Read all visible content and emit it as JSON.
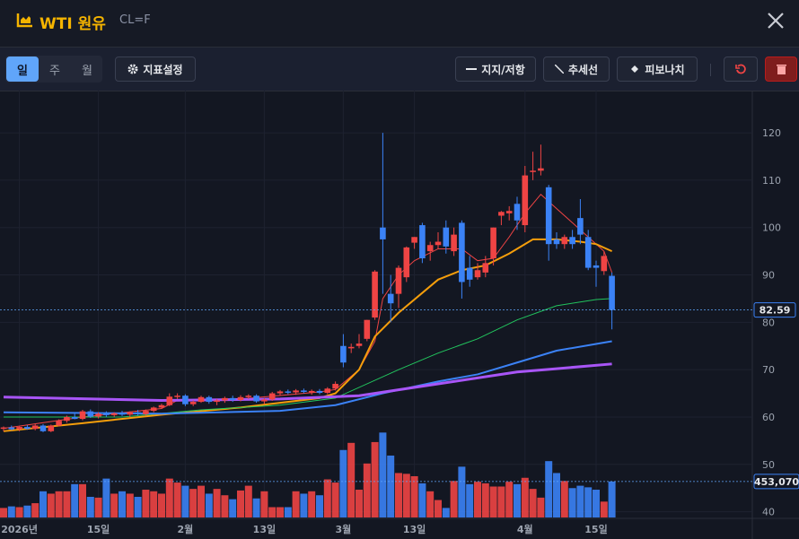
{
  "header": {
    "title": "WTI 원유",
    "symbol": "CL=F"
  },
  "toolbar": {
    "periods": [
      "일",
      "주",
      "월"
    ],
    "indicator": "지표설정",
    "tools": [
      "지지/저항",
      "추세선",
      "피보나치"
    ]
  },
  "chart_data": {
    "type": "candlestick",
    "up_color": "#ef4444",
    "down_color": "#3b82f6",
    "ylim": [
      38.6,
      129.1
    ],
    "yticks": [
      40,
      50,
      60,
      70,
      80,
      90,
      100,
      110,
      120
    ],
    "grid": true,
    "xticks": [
      {
        "value": 2,
        "label": "2026년"
      },
      {
        "value": 12,
        "label": "15일"
      },
      {
        "value": 23,
        "label": "2월"
      },
      {
        "value": 33,
        "label": "13일"
      },
      {
        "value": 43,
        "label": "3월"
      },
      {
        "value": 52,
        "label": "13일"
      },
      {
        "value": 66,
        "label": "4월"
      },
      {
        "value": 75,
        "label": "15일"
      }
    ],
    "ohlc": [
      [
        57.5,
        58,
        57,
        57.8
      ],
      [
        57.8,
        58.2,
        57.2,
        57.4
      ],
      [
        57.4,
        58,
        57,
        57.9
      ],
      [
        57.9,
        58.3,
        57.3,
        57.5
      ],
      [
        57.5,
        58.5,
        57.2,
        58.2
      ],
      [
        58.2,
        58.5,
        56.8,
        57
      ],
      [
        57,
        58.4,
        56.8,
        58.2
      ],
      [
        58.2,
        59.5,
        58,
        59.2
      ],
      [
        59.2,
        60.3,
        58.8,
        60
      ],
      [
        60,
        61,
        59.5,
        59.6
      ],
      [
        59.6,
        61.5,
        59.3,
        61.2
      ],
      [
        61.2,
        61.6,
        59.8,
        60.1
      ],
      [
        60.1,
        61,
        59.7,
        60.7
      ],
      [
        60.7,
        61.2,
        60,
        60.4
      ],
      [
        60.4,
        61,
        60,
        60.8
      ],
      [
        60.8,
        61.3,
        60.2,
        60.5
      ],
      [
        60.5,
        61.2,
        60,
        61
      ],
      [
        61,
        61.5,
        60.3,
        60.6
      ],
      [
        60.6,
        61.6,
        60.3,
        61.3
      ],
      [
        61.3,
        62.2,
        61,
        62
      ],
      [
        62,
        62.8,
        61.7,
        62.5
      ],
      [
        62.5,
        65,
        62.3,
        64.3
      ],
      [
        64.3,
        65,
        63.8,
        64.5
      ],
      [
        64.5,
        64.8,
        62.3,
        62.7
      ],
      [
        62.7,
        63.5,
        62.3,
        63.2
      ],
      [
        63.2,
        64.5,
        63,
        64.2
      ],
      [
        64.2,
        64.5,
        62.8,
        63.2
      ],
      [
        63.2,
        63.8,
        62.5,
        63.5
      ],
      [
        63.5,
        64.3,
        63,
        64
      ],
      [
        64,
        64.5,
        63.2,
        63.6
      ],
      [
        63.6,
        64.6,
        63.3,
        64.2
      ],
      [
        64.2,
        64.8,
        63.8,
        64.5
      ],
      [
        64.5,
        64.8,
        63,
        63.3
      ],
      [
        63.3,
        64,
        62.7,
        63.7
      ],
      [
        63.7,
        65.3,
        63.4,
        65
      ],
      [
        65,
        65.7,
        64.5,
        65.4
      ],
      [
        65.4,
        65.8,
        64.8,
        65.2
      ],
      [
        65.2,
        65.9,
        64.7,
        65.6
      ],
      [
        65.6,
        66,
        65,
        65.3
      ],
      [
        65.3,
        65.8,
        64.7,
        65.5
      ],
      [
        65.5,
        65.9,
        64.8,
        65.1
      ],
      [
        65.1,
        66.3,
        64.8,
        66
      ],
      [
        66,
        67.5,
        65.6,
        67
      ],
      [
        75,
        77.5,
        70.5,
        71.5
      ],
      [
        74.5,
        75.5,
        73.5,
        74.8
      ],
      [
        75,
        77.5,
        74.5,
        75.5
      ],
      [
        76.5,
        80.5,
        76,
        80.5
      ],
      [
        81,
        91,
        80.5,
        90.7
      ],
      [
        100,
        120,
        86,
        97.5
      ],
      [
        86,
        90,
        80,
        84
      ],
      [
        86,
        92,
        83,
        91.5
      ],
      [
        89.5,
        96,
        88.5,
        95.8
      ],
      [
        96.8,
        98,
        95.5,
        98
      ],
      [
        100.5,
        101,
        92.5,
        93.5
      ],
      [
        95,
        97,
        93,
        96.3
      ],
      [
        96.3,
        99,
        95.5,
        97
      ],
      [
        100,
        101.5,
        94.5,
        96
      ],
      [
        95,
        100,
        94,
        98.5
      ],
      [
        101,
        101.5,
        85,
        88.5
      ],
      [
        91.5,
        94,
        87.5,
        89
      ],
      [
        89.5,
        92.5,
        89,
        91
      ],
      [
        90.5,
        94,
        89.5,
        92.5
      ],
      [
        93.5,
        100,
        92,
        100
      ],
      [
        102.5,
        103.5,
        100.5,
        103.3
      ],
      [
        103,
        104.5,
        101.5,
        103.5
      ],
      [
        105,
        106.5,
        99.5,
        101.5
      ],
      [
        100.5,
        113,
        99,
        111
      ],
      [
        112,
        116,
        110,
        112
      ],
      [
        112,
        117.5,
        111,
        112.5
      ],
      [
        108.5,
        109,
        93,
        96.5
      ],
      [
        97.5,
        99,
        95.5,
        96.5
      ],
      [
        96.5,
        98.5,
        95.5,
        98
      ],
      [
        98,
        99.5,
        95.5,
        96.5
      ],
      [
        102,
        106,
        96.5,
        98.5
      ],
      [
        98,
        99.5,
        91,
        91.5
      ],
      [
        92,
        93,
        87.5,
        91.5
      ],
      [
        90.8,
        95,
        90,
        94
      ],
      [
        89.8,
        90.5,
        78.5,
        82.59
      ]
    ],
    "volume": [
      120000,
      140000,
      130000,
      150000,
      180000,
      330000,
      300000,
      330000,
      330000,
      420000,
      420000,
      260000,
      250000,
      490000,
      300000,
      330000,
      300000,
      260000,
      350000,
      330000,
      300000,
      490000,
      440000,
      400000,
      360000,
      400000,
      300000,
      360000,
      280000,
      230000,
      340000,
      400000,
      240000,
      330000,
      130000,
      130000,
      130000,
      330000,
      300000,
      330000,
      280000,
      480000,
      440000,
      850000,
      940000,
      350000,
      680000,
      950000,
      1070000,
      780000,
      560000,
      550000,
      520000,
      430000,
      330000,
      220000,
      120000,
      460000,
      640000,
      420000,
      450000,
      430000,
      390000,
      390000,
      450000,
      420000,
      500000,
      360000,
      250000,
      710000,
      560000,
      460000,
      370000,
      400000,
      380000,
      350000,
      200000,
      453070
    ],
    "vlim": [
      0,
      1130000
    ],
    "last_volume_label": "453,070",
    "lines": [
      {
        "color": "#ef4444",
        "width": 1,
        "x": [
          0,
          10,
          20,
          22,
          30,
          40,
          42,
          45,
          47,
          48,
          50,
          52,
          55,
          58,
          60,
          62,
          64,
          66,
          68,
          70,
          72,
          74,
          76,
          77
        ],
        "values": [
          57.6,
          60,
          61.8,
          63.5,
          63.8,
          65.3,
          65.8,
          70,
          76,
          85,
          90,
          93,
          95.5,
          95.5,
          93,
          93.5,
          98,
          103,
          107,
          104,
          101,
          98,
          95,
          90.5
        ]
      },
      {
        "color": "#f59e0b",
        "width": 2,
        "x": [
          0,
          10,
          20,
          30,
          40,
          42,
          45,
          47,
          50,
          55,
          58,
          61,
          64,
          67,
          70,
          73,
          75,
          77
        ],
        "values": [
          57,
          58.7,
          60.5,
          62,
          64,
          65,
          70,
          77,
          82,
          89,
          91,
          92,
          94.5,
          97.5,
          97.5,
          97,
          96.5,
          95
        ]
      },
      {
        "color": "#22c55e",
        "width": 1,
        "x": [
          0,
          15,
          25,
          35,
          42,
          50,
          55,
          60,
          65,
          70,
          75,
          77
        ],
        "values": [
          60,
          60,
          61.5,
          62.5,
          64,
          70,
          73.5,
          76.5,
          80.5,
          83.5,
          84.8,
          85
        ]
      },
      {
        "color": "#3b82f6",
        "width": 2,
        "x": [
          0,
          20,
          35,
          42,
          48,
          55,
          60,
          65,
          70,
          77
        ],
        "values": [
          61,
          60.7,
          61.3,
          62.5,
          65,
          67.5,
          69,
          71.5,
          74,
          76
        ]
      },
      {
        "color": "#a855f7",
        "width": 3,
        "x": [
          0,
          20,
          35,
          45,
          55,
          65,
          70,
          77
        ],
        "values": [
          64.2,
          63.5,
          63.8,
          64.5,
          67,
          69.5,
          70.2,
          71.2
        ]
      }
    ]
  }
}
